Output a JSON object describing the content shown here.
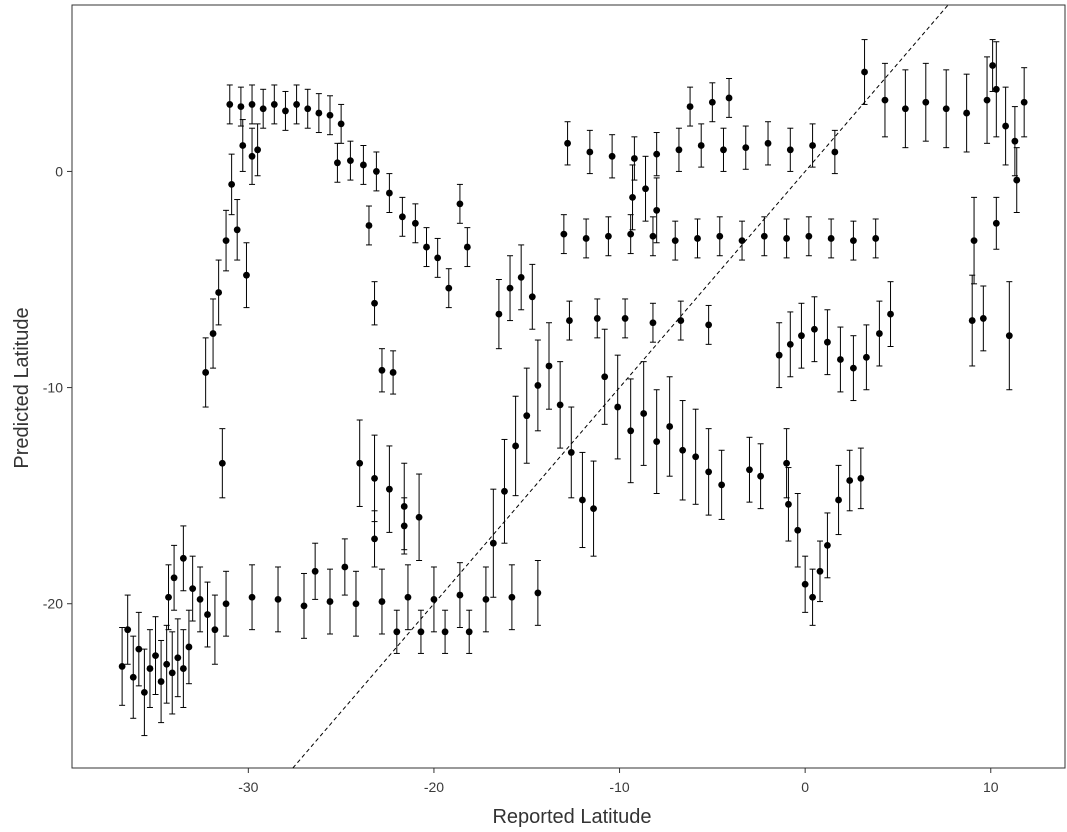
{
  "chart_data": {
    "type": "scatter",
    "title": "",
    "xlabel": "Reported Latitude",
    "ylabel": "Predicted Latitude",
    "xlim": [
      -39.5,
      14
    ],
    "ylim": [
      -27.6,
      7.7
    ],
    "x_ticks": [
      -30,
      -20,
      -10,
      0,
      10
    ],
    "y_ticks": [
      0,
      -10,
      -20
    ],
    "grid": false,
    "legend": "none",
    "reference_line": {
      "style": "dashed",
      "slope": 1,
      "intercept": 0
    },
    "error_bars": true,
    "colors": {
      "points": "#000000",
      "axis": "#333333",
      "reference_line": "#000000"
    },
    "series": [
      {
        "points": [
          [
            -36.8,
            -22.9,
            1.8
          ],
          [
            -36.5,
            -21.2,
            1.6
          ],
          [
            -36.2,
            -23.4,
            1.9
          ],
          [
            -35.9,
            -22.1,
            1.7
          ],
          [
            -35.6,
            -24.1,
            2.0
          ],
          [
            -35.3,
            -23.0,
            1.8
          ],
          [
            -35.0,
            -22.4,
            1.8
          ],
          [
            -34.7,
            -23.6,
            1.9
          ],
          [
            -34.4,
            -22.8,
            1.8
          ],
          [
            -34.1,
            -23.2,
            1.9
          ],
          [
            -33.8,
            -22.5,
            1.8
          ],
          [
            -33.5,
            -23.0,
            1.8
          ],
          [
            -33.2,
            -22.0,
            1.7
          ],
          [
            -34.3,
            -19.7,
            1.5
          ],
          [
            -34.0,
            -18.8,
            1.5
          ],
          [
            -33.5,
            -17.9,
            1.5
          ],
          [
            -33.0,
            -19.3,
            1.5
          ],
          [
            -32.6,
            -19.8,
            1.5
          ],
          [
            -32.2,
            -20.5,
            1.5
          ],
          [
            -31.8,
            -21.2,
            1.6
          ],
          [
            -32.3,
            -9.3,
            1.6
          ],
          [
            -31.9,
            -7.5,
            1.6
          ],
          [
            -31.6,
            -5.6,
            1.5
          ],
          [
            -31.4,
            -13.5,
            1.6
          ],
          [
            -31.2,
            -3.2,
            1.4
          ],
          [
            -30.9,
            -0.6,
            1.4
          ],
          [
            -30.6,
            -2.7,
            1.4
          ],
          [
            -30.3,
            1.2,
            1.2
          ],
          [
            -30.1,
            -4.8,
            1.5
          ],
          [
            -29.8,
            0.7,
            1.3
          ],
          [
            -29.5,
            1.0,
            1.2
          ],
          [
            -31.0,
            3.1,
            0.9
          ],
          [
            -30.4,
            3.0,
            0.9
          ],
          [
            -29.8,
            3.1,
            0.9
          ],
          [
            -29.2,
            2.9,
            0.9
          ],
          [
            -28.6,
            3.1,
            0.9
          ],
          [
            -28.0,
            2.8,
            0.9
          ],
          [
            -27.4,
            3.1,
            0.9
          ],
          [
            -26.8,
            2.9,
            0.9
          ],
          [
            -26.2,
            2.7,
            0.9
          ],
          [
            -25.6,
            2.6,
            0.9
          ],
          [
            -25.0,
            2.2,
            0.9
          ],
          [
            -25.2,
            0.4,
            0.9
          ],
          [
            -24.5,
            0.5,
            0.9
          ],
          [
            -23.8,
            0.3,
            0.9
          ],
          [
            -23.1,
            0.0,
            0.9
          ],
          [
            -22.4,
            -1.0,
            0.9
          ],
          [
            -21.7,
            -2.1,
            0.9
          ],
          [
            -21.0,
            -2.4,
            0.9
          ],
          [
            -20.4,
            -3.5,
            0.9
          ],
          [
            -19.8,
            -4.0,
            0.9
          ],
          [
            -19.2,
            -5.4,
            0.9
          ],
          [
            -18.6,
            -1.5,
            0.9
          ],
          [
            -18.2,
            -3.5,
            0.9
          ],
          [
            -23.5,
            -2.5,
            0.9
          ],
          [
            -23.2,
            -6.1,
            1.0
          ],
          [
            -22.8,
            -9.2,
            1.0
          ],
          [
            -22.2,
            -9.3,
            1.0
          ],
          [
            -24.0,
            -13.5,
            2.0
          ],
          [
            -23.2,
            -14.2,
            2.0
          ],
          [
            -22.4,
            -14.7,
            2.0
          ],
          [
            -21.6,
            -15.5,
            2.0
          ],
          [
            -20.8,
            -16.0,
            2.0
          ],
          [
            -31.2,
            -20.0,
            1.5
          ],
          [
            -29.8,
            -19.7,
            1.5
          ],
          [
            -28.4,
            -19.8,
            1.5
          ],
          [
            -27.0,
            -20.1,
            1.5
          ],
          [
            -25.6,
            -19.9,
            1.5
          ],
          [
            -24.2,
            -20.0,
            1.5
          ],
          [
            -22.8,
            -19.9,
            1.5
          ],
          [
            -21.4,
            -19.7,
            1.5
          ],
          [
            -20.0,
            -19.8,
            1.5
          ],
          [
            -18.6,
            -19.6,
            1.5
          ],
          [
            -17.2,
            -19.8,
            1.5
          ],
          [
            -15.8,
            -19.7,
            1.5
          ],
          [
            -14.4,
            -19.5,
            1.5
          ],
          [
            -26.4,
            -18.5,
            1.3
          ],
          [
            -24.8,
            -18.3,
            1.3
          ],
          [
            -23.2,
            -17.0,
            1.3
          ],
          [
            -21.6,
            -16.4,
            1.3
          ],
          [
            -22.0,
            -21.3,
            1.0
          ],
          [
            -20.7,
            -21.3,
            1.0
          ],
          [
            -19.4,
            -21.3,
            1.0
          ],
          [
            -18.1,
            -21.3,
            1.0
          ],
          [
            -16.8,
            -17.2,
            2.5
          ],
          [
            -16.2,
            -14.8,
            2.4
          ],
          [
            -15.6,
            -12.7,
            2.3
          ],
          [
            -15.0,
            -11.3,
            2.2
          ],
          [
            -14.4,
            -9.9,
            2.1
          ],
          [
            -13.8,
            -9.0,
            2.0
          ],
          [
            -13.2,
            -10.8,
            2.0
          ],
          [
            -12.6,
            -13.0,
            2.1
          ],
          [
            -12.0,
            -15.2,
            2.2
          ],
          [
            -11.4,
            -15.6,
            2.2
          ],
          [
            -16.5,
            -6.6,
            1.6
          ],
          [
            -15.9,
            -5.4,
            1.5
          ],
          [
            -15.3,
            -4.9,
            1.5
          ],
          [
            -14.7,
            -5.8,
            1.5
          ],
          [
            -13.0,
            -2.9,
            0.9
          ],
          [
            -11.8,
            -3.1,
            0.9
          ],
          [
            -10.6,
            -3.0,
            0.9
          ],
          [
            -9.4,
            -2.9,
            0.9
          ],
          [
            -8.2,
            -3.0,
            0.9
          ],
          [
            -7.0,
            -3.2,
            0.9
          ],
          [
            -5.8,
            -3.1,
            0.9
          ],
          [
            -4.6,
            -3.0,
            0.9
          ],
          [
            -3.4,
            -3.2,
            0.9
          ],
          [
            -2.2,
            -3.0,
            0.9
          ],
          [
            -1.0,
            -3.1,
            0.9
          ],
          [
            0.2,
            -3.0,
            0.9
          ],
          [
            1.4,
            -3.1,
            0.9
          ],
          [
            2.6,
            -3.2,
            0.9
          ],
          [
            3.8,
            -3.1,
            0.9
          ],
          [
            -12.8,
            1.3,
            1.0
          ],
          [
            -11.6,
            0.9,
            1.0
          ],
          [
            -10.4,
            0.7,
            1.0
          ],
          [
            -9.2,
            0.6,
            1.0
          ],
          [
            -8.0,
            0.8,
            1.0
          ],
          [
            -6.8,
            1.0,
            1.0
          ],
          [
            -5.6,
            1.2,
            1.0
          ],
          [
            -4.4,
            1.0,
            1.0
          ],
          [
            -3.2,
            1.1,
            1.0
          ],
          [
            -2.0,
            1.3,
            1.0
          ],
          [
            -0.8,
            1.0,
            1.0
          ],
          [
            0.4,
            1.2,
            1.0
          ],
          [
            1.6,
            0.9,
            1.0
          ],
          [
            -6.2,
            3.0,
            0.9
          ],
          [
            -5.0,
            3.2,
            0.9
          ],
          [
            -4.1,
            3.4,
            0.9
          ],
          [
            -9.3,
            -1.2,
            1.5
          ],
          [
            -8.6,
            -0.8,
            1.5
          ],
          [
            -8.0,
            -1.8,
            1.5
          ],
          [
            -12.7,
            -6.9,
            0.9
          ],
          [
            -11.2,
            -6.8,
            0.9
          ],
          [
            -9.7,
            -6.8,
            0.9
          ],
          [
            -8.2,
            -7.0,
            0.9
          ],
          [
            -6.7,
            -6.9,
            0.9
          ],
          [
            -5.2,
            -7.1,
            0.9
          ],
          [
            -10.8,
            -9.5,
            2.2
          ],
          [
            -10.1,
            -10.9,
            2.4
          ],
          [
            -9.4,
            -12.0,
            2.4
          ],
          [
            -8.7,
            -11.2,
            2.4
          ],
          [
            -8.0,
            -12.5,
            2.4
          ],
          [
            -7.3,
            -11.8,
            2.3
          ],
          [
            -6.6,
            -12.9,
            2.3
          ],
          [
            -5.9,
            -13.2,
            2.2
          ],
          [
            -5.2,
            -13.9,
            2.0
          ],
          [
            -4.5,
            -14.5,
            1.6
          ],
          [
            -3.0,
            -13.8,
            1.5
          ],
          [
            -2.4,
            -14.1,
            1.5
          ],
          [
            -1.0,
            -13.5,
            1.6
          ],
          [
            -1.4,
            -8.5,
            1.5
          ],
          [
            -0.8,
            -8.0,
            1.5
          ],
          [
            -0.2,
            -7.6,
            1.5
          ],
          [
            0.5,
            -7.3,
            1.5
          ],
          [
            1.2,
            -7.9,
            1.5
          ],
          [
            1.9,
            -8.7,
            1.5
          ],
          [
            2.6,
            -9.1,
            1.5
          ],
          [
            3.3,
            -8.6,
            1.5
          ],
          [
            4.0,
            -7.5,
            1.5
          ],
          [
            4.6,
            -6.6,
            1.5
          ],
          [
            -0.9,
            -15.4,
            1.7
          ],
          [
            -0.4,
            -16.6,
            1.7
          ],
          [
            0.0,
            -19.1,
            1.3
          ],
          [
            0.4,
            -19.7,
            1.3
          ],
          [
            0.8,
            -18.5,
            1.4
          ],
          [
            1.2,
            -17.3,
            1.5
          ],
          [
            1.8,
            -15.2,
            1.6
          ],
          [
            2.4,
            -14.3,
            1.4
          ],
          [
            3.0,
            -14.2,
            1.4
          ],
          [
            3.2,
            4.6,
            1.5
          ],
          [
            4.3,
            3.3,
            1.7
          ],
          [
            5.4,
            2.9,
            1.8
          ],
          [
            6.5,
            3.2,
            1.8
          ],
          [
            7.6,
            2.9,
            1.8
          ],
          [
            8.7,
            2.7,
            1.8
          ],
          [
            9.8,
            3.3,
            2.0
          ],
          [
            10.3,
            3.8,
            2.2
          ],
          [
            10.8,
            2.1,
            1.8
          ],
          [
            11.3,
            1.4,
            1.6
          ],
          [
            11.8,
            3.2,
            1.6
          ],
          [
            10.1,
            4.9,
            1.2
          ],
          [
            9.1,
            -3.2,
            2.0
          ],
          [
            10.3,
            -2.4,
            1.2
          ],
          [
            9.0,
            -6.9,
            2.1
          ],
          [
            9.6,
            -6.8,
            1.5
          ],
          [
            11.0,
            -7.6,
            2.5
          ],
          [
            11.4,
            -0.4,
            1.5
          ]
        ]
      }
    ]
  }
}
